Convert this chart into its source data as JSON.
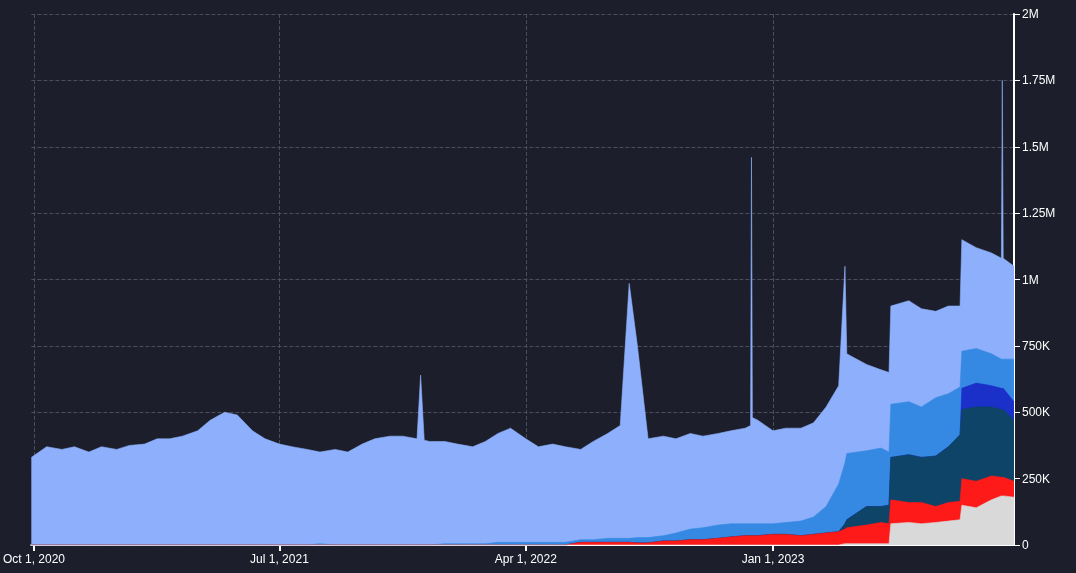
{
  "chart_data": {
    "type": "area",
    "stacked": true,
    "grid": true,
    "x": [
      "2020-09-28",
      "2020-10-15",
      "2020-11-01",
      "2020-11-15",
      "2020-12-01",
      "2020-12-15",
      "2021-01-01",
      "2021-01-15",
      "2021-02-01",
      "2021-02-15",
      "2021-03-01",
      "2021-03-15",
      "2021-04-01",
      "2021-04-15",
      "2021-05-01",
      "2021-05-15",
      "2021-06-01",
      "2021-06-15",
      "2021-07-01",
      "2021-07-15",
      "2021-08-01",
      "2021-08-15",
      "2021-09-01",
      "2021-09-15",
      "2021-10-01",
      "2021-10-15",
      "2021-11-01",
      "2021-11-15",
      "2021-12-01",
      "2021-12-05",
      "2021-12-09",
      "2021-12-15",
      "2022-01-01",
      "2022-01-15",
      "2022-02-01",
      "2022-02-15",
      "2022-03-01",
      "2022-03-15",
      "2022-04-01",
      "2022-04-15",
      "2022-05-01",
      "2022-05-15",
      "2022-06-01",
      "2022-06-15",
      "2022-07-01",
      "2022-07-15",
      "2022-07-25",
      "2022-08-03",
      "2022-08-15",
      "2022-09-01",
      "2022-09-15",
      "2022-10-01",
      "2022-10-15",
      "2022-11-01",
      "2022-11-15",
      "2022-12-01",
      "2022-12-07",
      "2022-12-08",
      "2022-12-09",
      "2022-12-15",
      "2023-01-01",
      "2023-01-15",
      "2023-02-01",
      "2023-02-15",
      "2023-03-01",
      "2023-03-15",
      "2023-03-22",
      "2023-03-24",
      "2023-04-15",
      "2023-05-01",
      "2023-05-10",
      "2023-05-12",
      "2023-06-01",
      "2023-06-15",
      "2023-07-01",
      "2023-07-15",
      "2023-07-28",
      "2023-07-30",
      "2023-08-15",
      "2023-09-01",
      "2023-09-12",
      "2023-09-13",
      "2023-09-14",
      "2023-09-26"
    ],
    "series": [
      {
        "color": "#d9d9d9",
        "values": [
          0,
          0,
          0,
          0,
          0,
          0,
          0,
          0,
          0,
          0,
          0,
          0,
          0,
          0,
          0,
          0,
          0,
          0,
          0,
          0,
          0,
          0,
          0,
          0,
          0,
          0,
          0,
          0,
          0,
          0,
          0,
          0,
          0,
          0,
          0,
          0,
          0,
          0,
          0,
          0,
          0,
          0,
          0,
          0,
          0,
          0,
          0,
          0,
          0,
          0,
          0,
          0,
          0,
          0,
          0,
          0,
          0,
          0,
          0,
          0,
          0,
          0,
          0,
          0,
          0,
          0,
          5000,
          5000,
          5000,
          5000,
          5000,
          80000,
          85000,
          80000,
          85000,
          90000,
          95000,
          150000,
          140000,
          170000,
          185000,
          185000,
          185000,
          180000
        ]
      },
      {
        "color": "#ff1a1a",
        "values": [
          0,
          0,
          0,
          0,
          0,
          0,
          0,
          0,
          0,
          0,
          0,
          0,
          0,
          0,
          0,
          0,
          0,
          0,
          0,
          0,
          0,
          0,
          0,
          0,
          0,
          0,
          0,
          0,
          0,
          0,
          0,
          0,
          0,
          0,
          0,
          0,
          0,
          0,
          0,
          0,
          0,
          0,
          10000,
          10000,
          10000,
          10000,
          10000,
          8000,
          8000,
          15000,
          15000,
          20000,
          20000,
          25000,
          30000,
          35000,
          35000,
          35000,
          35000,
          35000,
          40000,
          40000,
          35000,
          40000,
          45000,
          50000,
          55000,
          60000,
          70000,
          80000,
          75000,
          90000,
          75000,
          80000,
          60000,
          70000,
          70000,
          100000,
          100000,
          90000,
          70000,
          70000,
          70000,
          60000
        ]
      },
      {
        "color": "#0e4467",
        "values": [
          0,
          0,
          0,
          0,
          0,
          0,
          0,
          0,
          0,
          0,
          0,
          0,
          0,
          0,
          0,
          0,
          0,
          0,
          0,
          0,
          0,
          0,
          0,
          0,
          0,
          0,
          0,
          0,
          0,
          0,
          0,
          0,
          0,
          0,
          0,
          0,
          0,
          0,
          0,
          0,
          0,
          0,
          0,
          0,
          0,
          0,
          0,
          0,
          0,
          0,
          0,
          0,
          0,
          0,
          0,
          0,
          0,
          0,
          0,
          0,
          0,
          0,
          0,
          0,
          0,
          0,
          20000,
          30000,
          70000,
          60000,
          70000,
          160000,
          180000,
          170000,
          190000,
          210000,
          250000,
          260000,
          280000,
          260000,
          255000,
          255000,
          255000,
          230000
        ]
      },
      {
        "color": "#1b2fc9",
        "values": [
          0,
          0,
          0,
          0,
          0,
          0,
          0,
          0,
          0,
          0,
          0,
          0,
          0,
          0,
          0,
          0,
          0,
          0,
          0,
          0,
          0,
          0,
          0,
          0,
          0,
          0,
          0,
          0,
          0,
          0,
          0,
          0,
          0,
          0,
          0,
          0,
          0,
          0,
          0,
          0,
          0,
          0,
          0,
          0,
          0,
          0,
          0,
          0,
          0,
          0,
          0,
          0,
          0,
          0,
          0,
          0,
          0,
          0,
          0,
          0,
          0,
          0,
          0,
          0,
          0,
          0,
          0,
          0,
          0,
          0,
          0,
          0,
          0,
          0,
          0,
          0,
          0,
          80000,
          90000,
          80000,
          80000,
          80000,
          80000,
          70000
        ]
      },
      {
        "color": "#3589e3",
        "values": [
          0,
          0,
          0,
          0,
          0,
          0,
          0,
          0,
          0,
          0,
          0,
          0,
          0,
          0,
          0,
          0,
          0,
          0,
          0,
          0,
          0,
          5000,
          0,
          0,
          0,
          0,
          0,
          0,
          0,
          0,
          0,
          0,
          5000,
          5000,
          5000,
          5000,
          10000,
          10000,
          10000,
          10000,
          10000,
          10000,
          10000,
          10000,
          15000,
          15000,
          15000,
          20000,
          20000,
          20000,
          30000,
          40000,
          45000,
          50000,
          50000,
          45000,
          45000,
          45000,
          45000,
          45000,
          40000,
          45000,
          55000,
          65000,
          100000,
          180000,
          230000,
          250000,
          210000,
          220000,
          200000,
          200000,
          200000,
          190000,
          220000,
          200000,
          180000,
          140000,
          130000,
          120000,
          110000,
          110000,
          110000,
          160000
        ]
      },
      {
        "color": "#8eb0fc",
        "values": [
          330000,
          370000,
          360000,
          370000,
          350000,
          370000,
          360000,
          375000,
          380000,
          400000,
          400000,
          410000,
          430000,
          470000,
          500000,
          490000,
          430000,
          400000,
          380000,
          370000,
          360000,
          345000,
          360000,
          350000,
          380000,
          400000,
          410000,
          410000,
          400000,
          640000,
          395000,
          390000,
          385000,
          375000,
          365000,
          385000,
          410000,
          430000,
          390000,
          360000,
          370000,
          360000,
          340000,
          370000,
          395000,
          425000,
          960000,
          725000,
          372000,
          375000,
          355000,
          360000,
          345000,
          345000,
          350000,
          360000,
          370000,
          1380000,
          400000,
          390000,
          350000,
          355000,
          350000,
          355000,
          375000,
          370000,
          740000,
          375000,
          325000,
          295000,
          300000,
          370000,
          380000,
          370000,
          325000,
          330000,
          305000,
          420000,
          380000,
          380000,
          380000,
          1050000,
          380000,
          350000
        ]
      }
    ],
    "xlim": [
      "2020-09-28",
      "2023-09-26"
    ],
    "xticks": [
      {
        "value": "2020-10-01",
        "label": "Oct 1, 2020"
      },
      {
        "value": "2021-07-01",
        "label": "Jul 1, 2021"
      },
      {
        "value": "2022-04-01",
        "label": "Apr 1, 2022"
      },
      {
        "value": "2023-01-01",
        "label": "Jan 1, 2023"
      }
    ],
    "ylim": [
      0,
      2000000
    ],
    "yticks": [
      {
        "value": 0,
        "label": "0"
      },
      {
        "value": 250000,
        "label": "250K"
      },
      {
        "value": 500000,
        "label": "500K"
      },
      {
        "value": 750000,
        "label": "750K"
      },
      {
        "value": 1000000,
        "label": "1M"
      },
      {
        "value": 1250000,
        "label": "1.25M"
      },
      {
        "value": 1500000,
        "label": "1.5M"
      },
      {
        "value": 1750000,
        "label": "1.75M"
      },
      {
        "value": 2000000,
        "label": "2M"
      }
    ]
  }
}
